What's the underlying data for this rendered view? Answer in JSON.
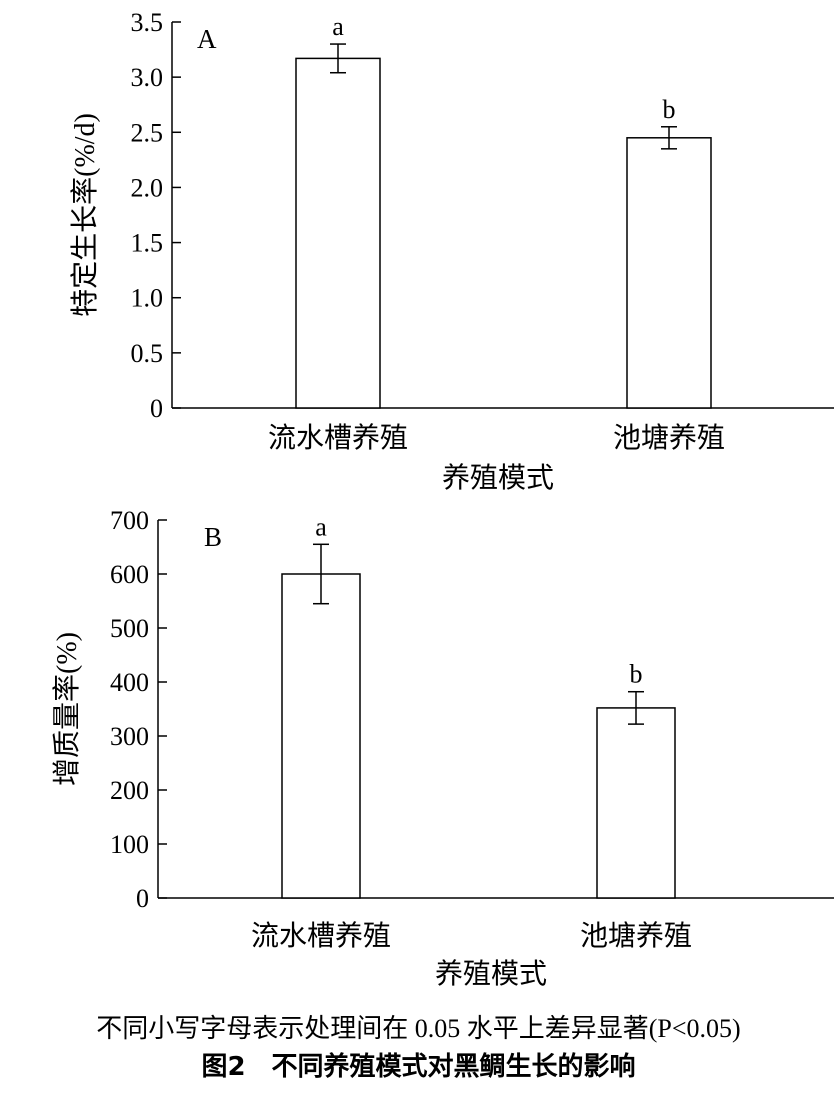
{
  "chart_data": [
    {
      "type": "bar",
      "panel_label": "A",
      "categories": [
        "流水槽养殖",
        "池塘养殖"
      ],
      "values": [
        3.17,
        2.45
      ],
      "errors": [
        0.13,
        0.1
      ],
      "significance": [
        "a",
        "b"
      ],
      "ylabel": "特定生长率(%/d)",
      "xlabel": "养殖模式",
      "ylim": [
        0,
        3.5
      ],
      "yticks": [
        0,
        0.5,
        1.0,
        1.5,
        2.0,
        2.5,
        3.0,
        3.5
      ],
      "ytick_labels": [
        "0",
        "0.5",
        "1.0",
        "1.5",
        "2.0",
        "2.5",
        "3.0",
        "3.5"
      ],
      "grid": false
    },
    {
      "type": "bar",
      "panel_label": "B",
      "categories": [
        "流水槽养殖",
        "池塘养殖"
      ],
      "values": [
        600,
        352
      ],
      "errors": [
        55,
        30
      ],
      "significance": [
        "a",
        "b"
      ],
      "ylabel": "增质量率(%)",
      "xlabel": "养殖模式",
      "ylim": [
        0,
        700
      ],
      "yticks": [
        0,
        100,
        200,
        300,
        400,
        500,
        600,
        700
      ],
      "ytick_labels": [
        "0",
        "100",
        "200",
        "300",
        "400",
        "500",
        "600",
        "700"
      ],
      "grid": false
    }
  ],
  "note": "不同小写字母表示处理间在 0.05 水平上差异显著(P<0.05)",
  "caption": "图2　不同养殖模式对黑鲷生长的影响"
}
